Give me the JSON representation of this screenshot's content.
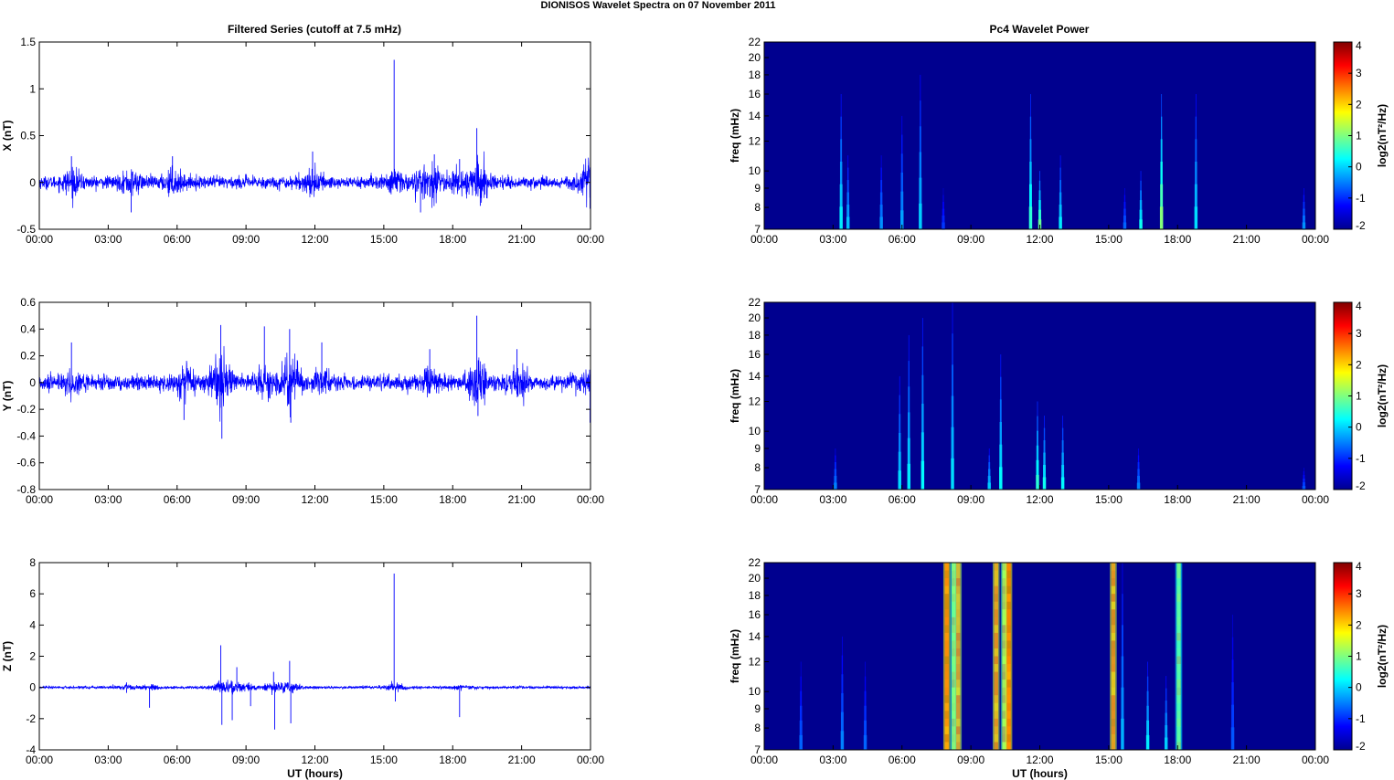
{
  "figure_title": "DIONISOS Wavelet Spectra on 07 November  2011",
  "left_title": "Filtered Series (cutoff at 7.5 mHz)",
  "right_title": "Pc4 Wavelet Power",
  "x_tick_labels": [
    "00:00",
    "03:00",
    "06:00",
    "09:00",
    "12:00",
    "15:00",
    "18:00",
    "21:00",
    "00:00"
  ],
  "x_axis_label": "UT (hours)",
  "colors": {
    "trace": "#0000ff",
    "background_power": "#00008f"
  },
  "chart_data": [
    {
      "type": "line",
      "panel": "X",
      "ylabel": "X (nT)",
      "ylim": [
        -0.5,
        1.5
      ],
      "yticks": [
        "-0.5",
        "0",
        "0.5",
        "1",
        "1.5"
      ],
      "xlim": [
        0,
        24
      ],
      "noise_amplitude": 0.06,
      "events": [
        {
          "t": 1.4,
          "v": 0.28
        },
        {
          "t": 4.0,
          "v": -0.32
        },
        {
          "t": 5.8,
          "v": 0.28
        },
        {
          "t": 11.9,
          "v": 0.33
        },
        {
          "t": 15.45,
          "v": 1.31
        },
        {
          "t": 16.6,
          "v": -0.32
        },
        {
          "t": 17.2,
          "v": 0.3
        },
        {
          "t": 18.3,
          "v": 0.25
        },
        {
          "t": 19.05,
          "v": 0.58
        },
        {
          "t": 19.2,
          "v": -0.25
        },
        {
          "t": 23.9,
          "v": 0.18
        },
        {
          "t": 23.98,
          "v": -0.28
        }
      ]
    },
    {
      "type": "line",
      "panel": "Y",
      "ylabel": "Y (nT)",
      "ylim": [
        -0.8,
        0.6
      ],
      "yticks": [
        "-0.8",
        "-0.6",
        "-0.4",
        "-0.2",
        "0",
        "0.2",
        "0.4",
        "0.6"
      ],
      "xlim": [
        0,
        24
      ],
      "noise_amplitude": 0.05,
      "events": [
        {
          "t": 1.4,
          "v": 0.3
        },
        {
          "t": 6.3,
          "v": -0.28
        },
        {
          "t": 7.9,
          "v": 0.43
        },
        {
          "t": 7.95,
          "v": -0.42
        },
        {
          "t": 9.8,
          "v": 0.42
        },
        {
          "t": 10.9,
          "v": 0.4
        },
        {
          "t": 10.95,
          "v": -0.3
        },
        {
          "t": 12.3,
          "v": 0.3
        },
        {
          "t": 17.0,
          "v": 0.25
        },
        {
          "t": 19.05,
          "v": 0.5
        },
        {
          "t": 19.1,
          "v": -0.25
        },
        {
          "t": 20.8,
          "v": 0.25
        },
        {
          "t": 23.98,
          "v": -0.3
        }
      ]
    },
    {
      "type": "line",
      "panel": "Z",
      "ylabel": "Z (nT)",
      "ylim": [
        -4,
        8
      ],
      "yticks": [
        "-4",
        "-2",
        "0",
        "2",
        "4",
        "6",
        "8"
      ],
      "xlim": [
        0,
        24
      ],
      "noise_amplitude": 0.08,
      "events": [
        {
          "t": 3.8,
          "v": -0.35
        },
        {
          "t": 4.8,
          "v": -1.3
        },
        {
          "t": 7.9,
          "v": 2.7
        },
        {
          "t": 7.95,
          "v": -2.4
        },
        {
          "t": 8.4,
          "v": -2.1
        },
        {
          "t": 8.6,
          "v": 1.3
        },
        {
          "t": 9.2,
          "v": -1.2
        },
        {
          "t": 10.2,
          "v": 1.0
        },
        {
          "t": 10.25,
          "v": -2.7
        },
        {
          "t": 10.9,
          "v": 1.7
        },
        {
          "t": 10.95,
          "v": -2.3
        },
        {
          "t": 15.45,
          "v": 7.3
        },
        {
          "t": 15.5,
          "v": -0.9
        },
        {
          "t": 18.3,
          "v": -1.9
        }
      ]
    },
    {
      "type": "heatmap",
      "panel": "X",
      "ylabel": "freq (mHz)",
      "ylim": [
        7,
        22
      ],
      "yticks": [
        "7",
        "8",
        "9",
        "10",
        "12",
        "14",
        "16",
        "18",
        "20",
        "22"
      ],
      "y_scale": "log",
      "xlim": [
        0,
        24
      ],
      "colorbar": {
        "label": "log2(nT²/Hz)",
        "range": [
          -2,
          4
        ],
        "ticks": [
          "-2",
          "-1",
          "0",
          "1",
          "2",
          "3",
          "4"
        ]
      },
      "bursts": [
        {
          "t": 3.35,
          "peak": 0.4,
          "fmax": 16
        },
        {
          "t": 3.65,
          "peak": 0.1,
          "fmax": 11
        },
        {
          "t": 5.1,
          "peak": -0.2,
          "fmax": 11
        },
        {
          "t": 6.0,
          "peak": -0.1,
          "fmax": 14
        },
        {
          "t": 6.8,
          "peak": 0.2,
          "fmax": 18
        },
        {
          "t": 7.8,
          "peak": -0.8,
          "fmax": 9
        },
        {
          "t": 11.6,
          "peak": 0.8,
          "fmax": 16
        },
        {
          "t": 12.0,
          "peak": 1.2,
          "fmax": 10
        },
        {
          "t": 12.9,
          "peak": 0.4,
          "fmax": 11
        },
        {
          "t": 15.7,
          "peak": -0.5,
          "fmax": 9
        },
        {
          "t": 16.4,
          "peak": 0.6,
          "fmax": 10
        },
        {
          "t": 17.3,
          "peak": 1.4,
          "fmax": 16
        },
        {
          "t": 18.8,
          "peak": 0.3,
          "fmax": 16
        },
        {
          "t": 23.5,
          "peak": -0.2,
          "fmax": 9
        }
      ]
    },
    {
      "type": "heatmap",
      "panel": "Y",
      "ylabel": "freq (mHz)",
      "ylim": [
        7,
        22
      ],
      "yticks": [
        "7",
        "8",
        "9",
        "10",
        "12",
        "14",
        "16",
        "18",
        "20",
        "22"
      ],
      "y_scale": "log",
      "xlim": [
        0,
        24
      ],
      "colorbar": {
        "label": "log2(nT²/Hz)",
        "range": [
          -2,
          4
        ],
        "ticks": [
          "-2",
          "-1",
          "0",
          "1",
          "2",
          "3",
          "4"
        ]
      },
      "bursts": [
        {
          "t": 3.1,
          "peak": -0.3,
          "fmax": 9
        },
        {
          "t": 5.9,
          "peak": 0.3,
          "fmax": 14
        },
        {
          "t": 6.3,
          "peak": 0.4,
          "fmax": 18
        },
        {
          "t": 6.9,
          "peak": 0.5,
          "fmax": 20
        },
        {
          "t": 8.2,
          "peak": 0.3,
          "fmax": 22
        },
        {
          "t": 9.8,
          "peak": 0.2,
          "fmax": 9
        },
        {
          "t": 10.3,
          "peak": 0.5,
          "fmax": 16
        },
        {
          "t": 11.9,
          "peak": 0.8,
          "fmax": 12
        },
        {
          "t": 12.2,
          "peak": 0.6,
          "fmax": 11
        },
        {
          "t": 13.0,
          "peak": 0.5,
          "fmax": 11
        },
        {
          "t": 16.3,
          "peak": -0.3,
          "fmax": 9
        },
        {
          "t": 23.5,
          "peak": -0.6,
          "fmax": 8
        }
      ]
    },
    {
      "type": "heatmap",
      "panel": "Z",
      "ylabel": "freq (mHz)",
      "ylim": [
        7,
        22
      ],
      "yticks": [
        "7",
        "8",
        "9",
        "10",
        "12",
        "14",
        "16",
        "18",
        "20",
        "22"
      ],
      "y_scale": "log",
      "xlim": [
        0,
        24
      ],
      "colorbar": {
        "label": "log2(nT²/Hz)",
        "range": [
          -2,
          4
        ],
        "ticks": [
          "-2",
          "-1",
          "0",
          "1",
          "2",
          "3",
          "4"
        ]
      },
      "bursts": [
        {
          "t": 7.95,
          "peak": 3.5,
          "fmax": 22,
          "full": true
        },
        {
          "t": 8.25,
          "peak": 2.2,
          "fmax": 22,
          "full": true
        },
        {
          "t": 8.45,
          "peak": 3.0,
          "fmax": 22,
          "full": true
        },
        {
          "t": 10.1,
          "peak": 3.2,
          "fmax": 22,
          "full": true
        },
        {
          "t": 10.45,
          "peak": 2.5,
          "fmax": 22,
          "full": true
        },
        {
          "t": 10.65,
          "peak": 3.6,
          "fmax": 22,
          "full": true
        },
        {
          "t": 15.2,
          "peak": 3.2,
          "fmax": 22,
          "full": true
        },
        {
          "t": 18.05,
          "peak": 2.0,
          "fmax": 22,
          "full": true
        },
        {
          "t": 1.6,
          "peak": -0.5,
          "fmax": 12
        },
        {
          "t": 3.4,
          "peak": -0.3,
          "fmax": 14
        },
        {
          "t": 4.4,
          "peak": -0.5,
          "fmax": 12
        },
        {
          "t": 15.6,
          "peak": 0.0,
          "fmax": 22
        },
        {
          "t": 16.7,
          "peak": 0.4,
          "fmax": 12
        },
        {
          "t": 17.5,
          "peak": 0.2,
          "fmax": 11
        },
        {
          "t": 20.4,
          "peak": -0.6,
          "fmax": 16
        }
      ]
    }
  ]
}
